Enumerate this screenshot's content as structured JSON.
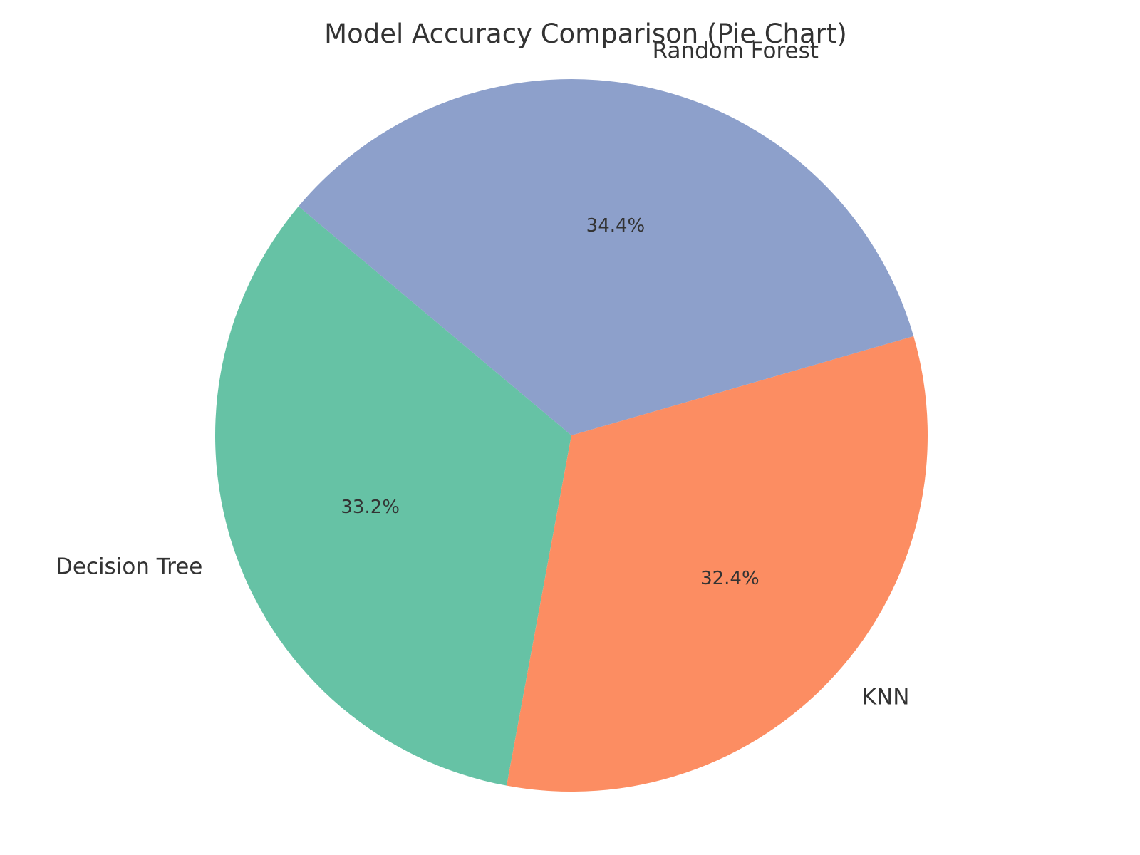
{
  "chart_data": {
    "type": "pie",
    "title": "Model Accuracy Comparison (Pie Chart)",
    "categories": [
      "Decision Tree",
      "KNN",
      "Random Forest"
    ],
    "values": [
      33.2,
      32.4,
      34.4
    ],
    "percent_labels": [
      "33.2%",
      "32.4%",
      "34.4%"
    ],
    "colors": [
      "#66c2a5",
      "#fc8d62",
      "#8da0cb"
    ],
    "start_angle_deg": 140,
    "direction": "counterclockwise",
    "legend": "none"
  }
}
